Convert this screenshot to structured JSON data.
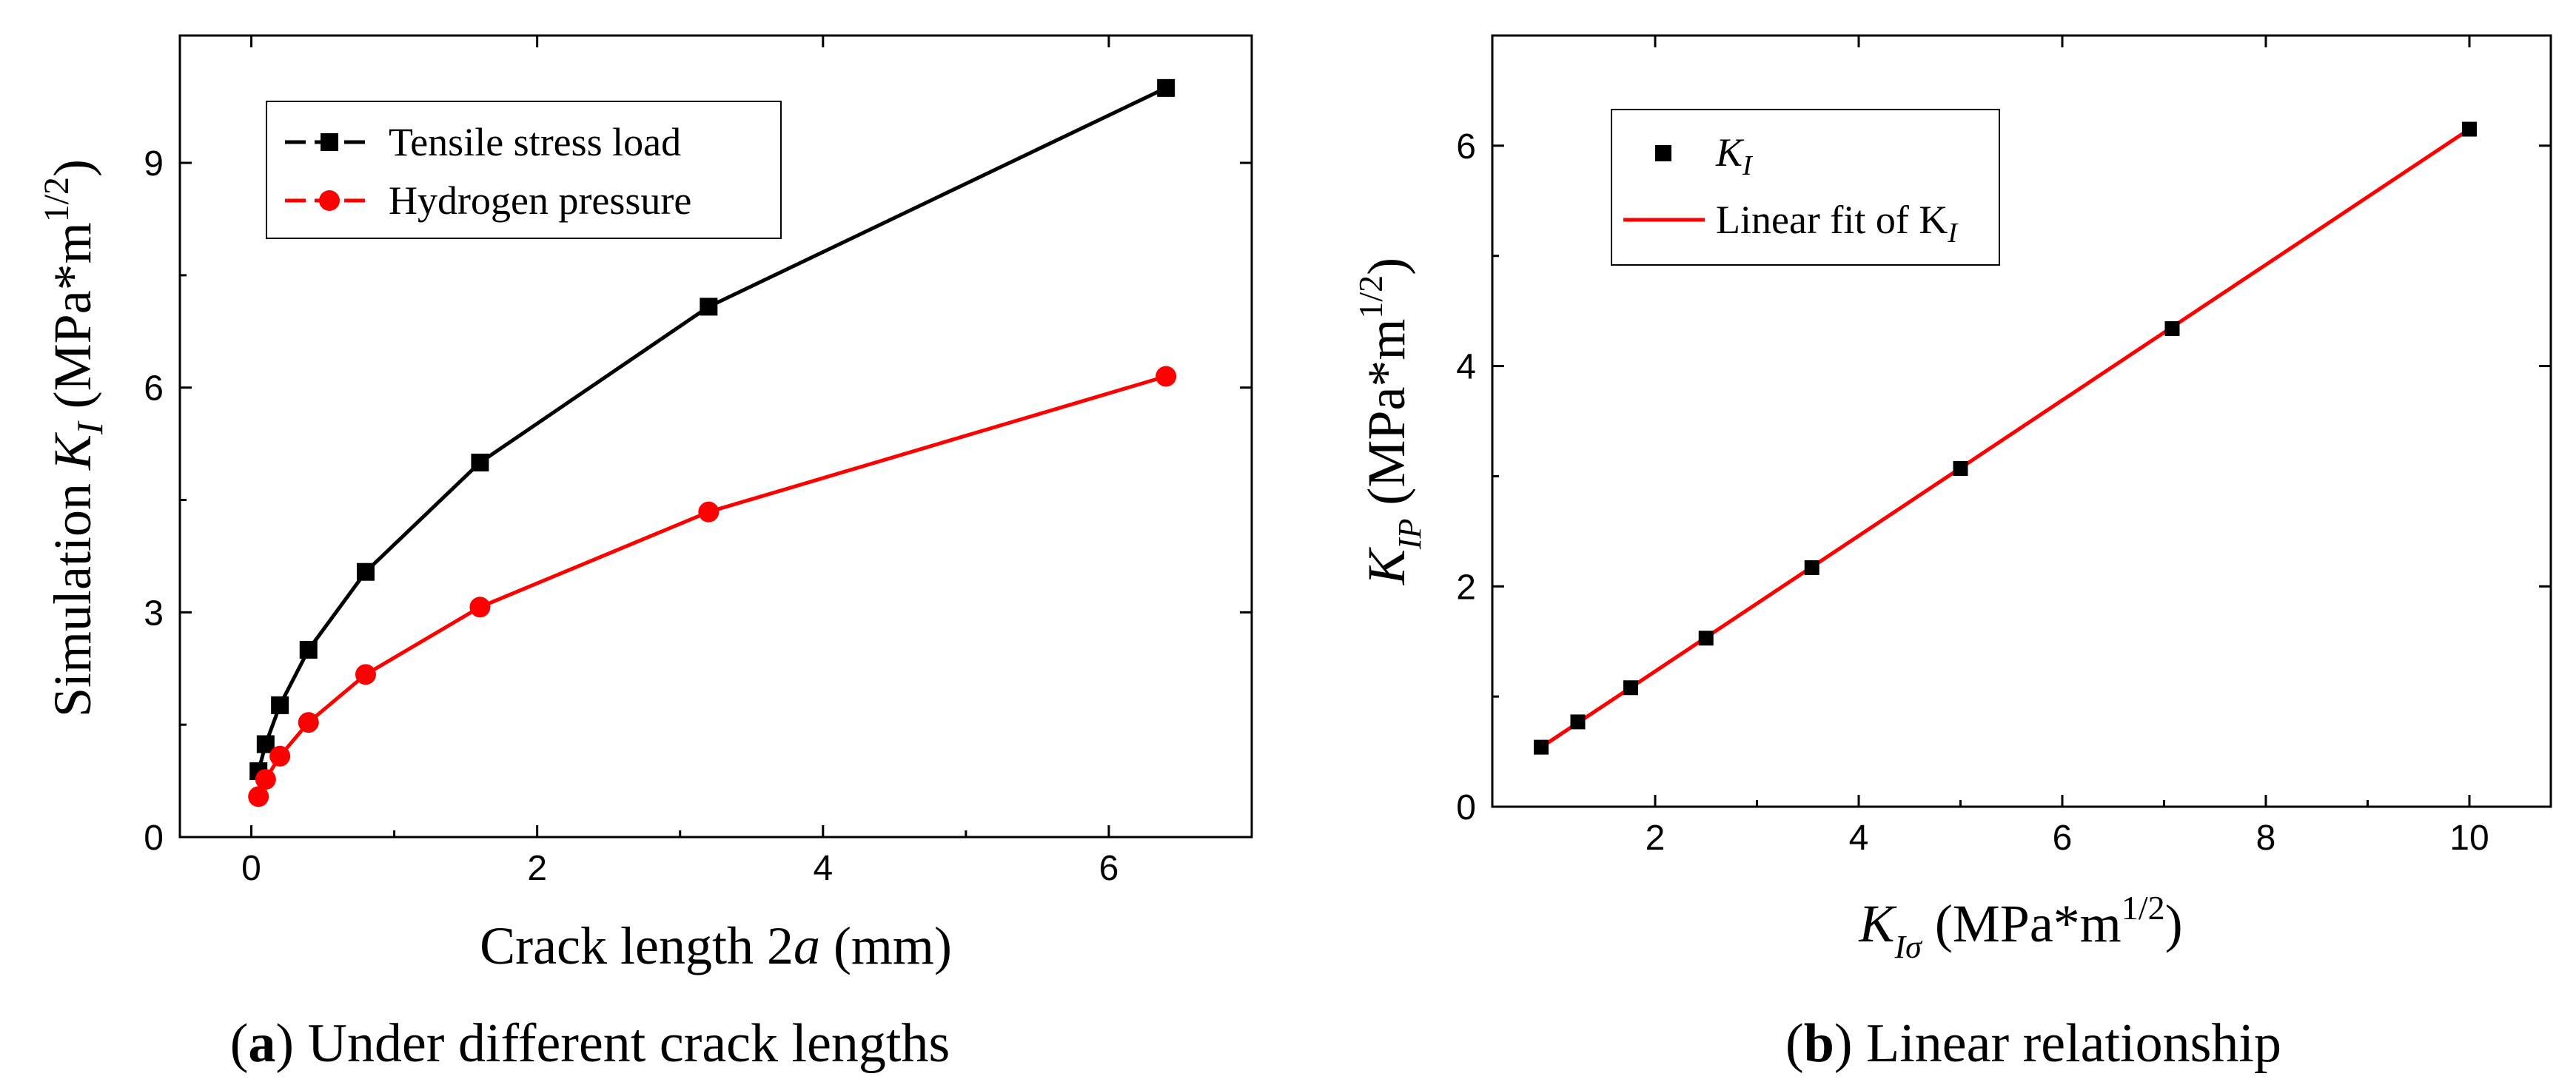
{
  "chart_data": [
    {
      "type": "line",
      "title": "",
      "xlabel": {
        "pre": "Crack length 2",
        "var": "a",
        "post": " (mm)"
      },
      "ylabel": {
        "pre": "Simulation ",
        "var": "K",
        "sub": "I",
        "mid": " (MPa*m",
        "sup": "1/2",
        "post": ")"
      },
      "xlim": [
        -0.5,
        7.0
      ],
      "ylim": [
        0,
        10.7
      ],
      "xticks": [
        0,
        2,
        4,
        6
      ],
      "yticks": [
        0,
        3,
        6,
        9
      ],
      "xtick_labels": [
        "0",
        "2",
        "4",
        "6"
      ],
      "ytick_labels": [
        "0",
        "3",
        "6",
        "9"
      ],
      "legend_position": "top-left",
      "x": [
        0.05,
        0.1,
        0.2,
        0.4,
        0.8,
        1.6,
        3.2,
        6.4
      ],
      "series": [
        {
          "name": "Tensile stress load",
          "color": "#000000",
          "marker": "square",
          "values": [
            0.88,
            1.24,
            1.76,
            2.5,
            3.54,
            5.0,
            7.08,
            10.0
          ]
        },
        {
          "name": "Hydrogen pressure",
          "color": "#ff0000",
          "marker": "circle",
          "values": [
            0.54,
            0.77,
            1.08,
            1.53,
            2.17,
            3.07,
            4.34,
            6.15
          ]
        }
      ],
      "caption": {
        "label": "a",
        "text": " Under different crack lengths"
      }
    },
    {
      "type": "scatter",
      "title": "",
      "xlabel": {
        "var": "K",
        "sub": "Iσ",
        "mid": " (MPa*m",
        "sup": "1/2",
        "post": ")"
      },
      "ylabel": {
        "var": "K",
        "sub": "IP",
        "mid": " (MPa*m",
        "sup": "1/2",
        "post": ")"
      },
      "xlim": [
        0.4,
        10.8
      ],
      "ylim": [
        0,
        7.0
      ],
      "xticks": [
        2,
        4,
        6,
        8,
        10
      ],
      "yticks": [
        0,
        2,
        4,
        6
      ],
      "xtick_labels": [
        "2",
        "4",
        "6",
        "8",
        "10"
      ],
      "ytick_labels": [
        "0",
        "2",
        "4",
        "6"
      ],
      "legend_position": "top-left",
      "points": {
        "name": "K",
        "name_sub": "I",
        "color": "#000000",
        "marker": "square",
        "x": [
          0.88,
          1.24,
          1.76,
          2.5,
          3.54,
          5.0,
          7.08,
          10.0
        ],
        "y": [
          0.54,
          0.77,
          1.08,
          1.53,
          2.17,
          3.07,
          4.34,
          6.15
        ]
      },
      "fit": {
        "name": "Linear fit of K",
        "name_sub": "I",
        "color": "#ff0000",
        "x": [
          0.88,
          10.0
        ],
        "y": [
          0.54,
          6.15
        ]
      },
      "caption": {
        "label": "b",
        "text": " Linear relationship"
      }
    }
  ]
}
